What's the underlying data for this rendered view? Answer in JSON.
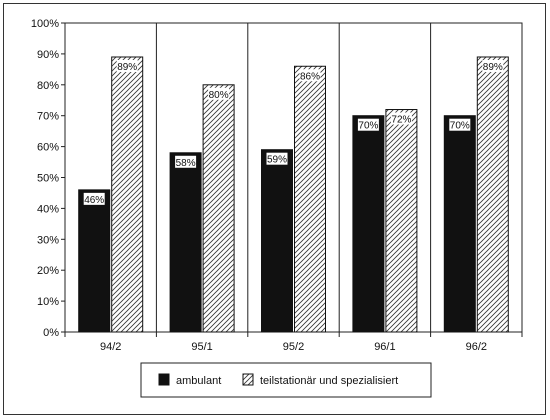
{
  "chart_data": {
    "type": "bar",
    "categories": [
      "94/2",
      "95/1",
      "95/2",
      "96/1",
      "96/2"
    ],
    "series": [
      {
        "name": "ambulant",
        "values": [
          46,
          58,
          59,
          70,
          70
        ],
        "labels": [
          "46%",
          "58%",
          "59%",
          "70%",
          "70%"
        ],
        "fill": "#111111",
        "pattern": "solid"
      },
      {
        "name": "teilstationär und spezialisiert",
        "values": [
          89,
          80,
          86,
          72,
          89
        ],
        "labels": [
          "89%",
          "80%",
          "86%",
          "72%",
          "89%"
        ],
        "fill": "#ffffff",
        "pattern": "diagonal-hatch"
      }
    ],
    "y_ticks": [
      "0%",
      "10%",
      "20%",
      "30%",
      "40%",
      "50%",
      "60%",
      "70%",
      "80%",
      "90%",
      "100%"
    ],
    "ylim": [
      0,
      100
    ],
    "grid": "vertical category dividers",
    "legend_position": "bottom-center",
    "title": "",
    "xlabel": "",
    "ylabel": ""
  }
}
